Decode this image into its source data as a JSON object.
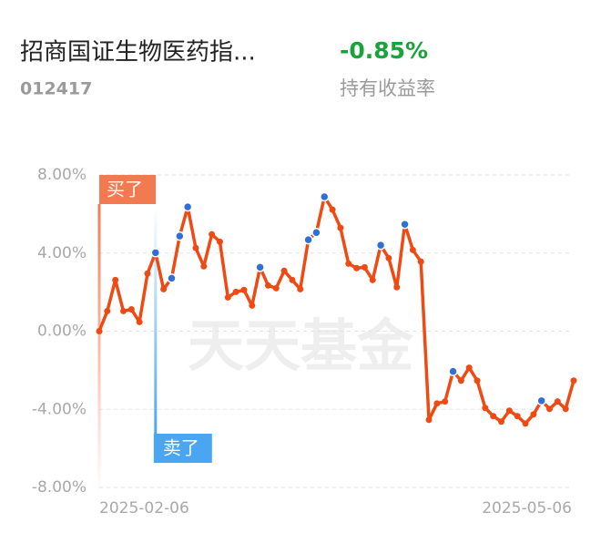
{
  "chart_data": {
    "type": "line",
    "title": "招商国证生物医药指...",
    "code": "012417",
    "summary_value": "-0.85%",
    "summary_color": "#1aa33a",
    "summary_label": "持有收益率",
    "watermark": "天天基金",
    "categories": [
      "2025-02-06",
      null,
      null,
      null,
      null,
      null,
      null,
      null,
      null,
      null,
      null,
      null,
      null,
      null,
      null,
      null,
      null,
      null,
      null,
      null,
      null,
      null,
      null,
      null,
      null,
      null,
      null,
      null,
      null,
      null,
      null,
      null,
      null,
      null,
      null,
      null,
      null,
      null,
      null,
      null,
      null,
      null,
      null,
      null,
      null,
      null,
      null,
      null,
      null,
      null,
      null,
      null,
      null,
      null,
      null,
      null,
      null,
      null,
      null,
      "2025-05-06"
    ],
    "series": [
      {
        "color": "#f04a14",
        "values": [
          0.0,
          1.03,
          2.62,
          1.03,
          1.12,
          0.47,
          2.95,
          4.02,
          2.15,
          2.71,
          4.87,
          6.36,
          4.26,
          3.32,
          4.96,
          4.58,
          1.73,
          2.01,
          2.11,
          1.31,
          3.27,
          2.34,
          2.2,
          3.09,
          2.62,
          2.15,
          4.68,
          5.05,
          6.88,
          6.22,
          5.29,
          3.46,
          3.23,
          3.27,
          2.62,
          4.4,
          3.74,
          2.25,
          5.47,
          4.16,
          3.56,
          -4.54,
          -3.7,
          -3.6,
          -2.06,
          -2.53,
          -1.87,
          -2.53,
          -3.93,
          -4.35,
          -4.63,
          -4.07,
          -4.35,
          -4.73,
          -4.26,
          -3.56,
          -3.98,
          -3.6,
          -3.98,
          -2.53
        ],
        "marker_colors": [
          "#f04a14",
          "#f04a14",
          "#f04a14",
          "#f04a14",
          "#f04a14",
          "#f04a14",
          "#f04a14",
          "#2f6fd6",
          "#f04a14",
          "#2f6fd6",
          "#2f6fd6",
          "#2f6fd6",
          "#f04a14",
          "#f04a14",
          "#f04a14",
          "#f04a14",
          "#f04a14",
          "#f04a14",
          "#f04a14",
          "#f04a14",
          "#2f6fd6",
          "#f04a14",
          "#f04a14",
          "#f04a14",
          "#f04a14",
          "#f04a14",
          "#2f6fd6",
          "#2f6fd6",
          "#2f6fd6",
          "#f04a14",
          "#f04a14",
          "#f04a14",
          "#f04a14",
          "#f04a14",
          "#f04a14",
          "#2f6fd6",
          "#f04a14",
          "#f04a14",
          "#2f6fd6",
          "#f04a14",
          "#f04a14",
          "#f04a14",
          "#f04a14",
          "#f04a14",
          "#2f6fd6",
          "#f04a14",
          "#f04a14",
          "#f04a14",
          "#f04a14",
          "#f04a14",
          "#f04a14",
          "#f04a14",
          "#f04a14",
          "#f04a14",
          "#f04a14",
          "#2f6fd6",
          "#f04a14",
          "#f04a14",
          "#f04a14",
          "#f04a14"
        ]
      }
    ],
    "annotations": [
      {
        "text": "买了",
        "index": 0,
        "color": "#f27a50"
      },
      {
        "text": "卖了",
        "index": 7,
        "color": "#4aa6f2"
      }
    ],
    "ylim": [
      -8,
      8
    ],
    "yticks": [
      {
        "value": 8,
        "label": "8.00%"
      },
      {
        "value": 4,
        "label": "4.00%"
      },
      {
        "value": 0,
        "label": "0.00%"
      },
      {
        "value": -4,
        "label": "-4.00%"
      },
      {
        "value": -8,
        "label": "-8.00%"
      }
    ],
    "grid": true
  }
}
